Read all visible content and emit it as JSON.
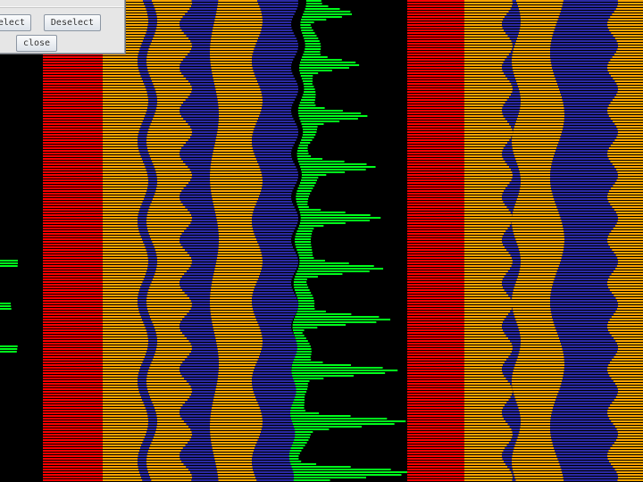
{
  "dialog": {
    "select_label": "elect",
    "deselect_label": "Deselect",
    "close_label": "close"
  },
  "colors": {
    "background": "#000000",
    "red": "#ff0000",
    "orange": "#ffa500",
    "blue": "#2a2aa6",
    "green": "#00ff1c"
  }
}
